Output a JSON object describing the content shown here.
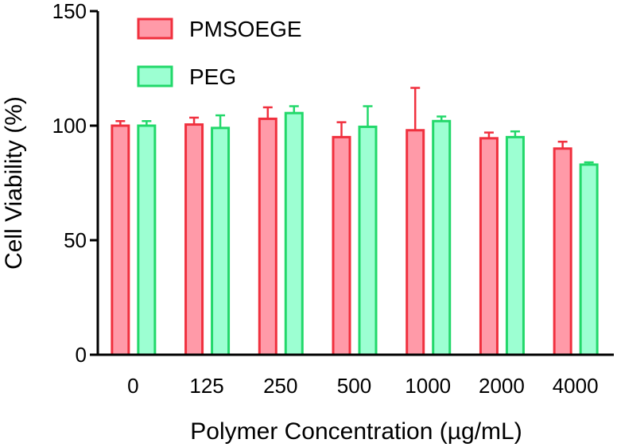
{
  "chart_data": {
    "type": "bar",
    "title": "",
    "xlabel": "Polymer Concentration (µg/mL)",
    "ylabel": "Cell Viability (%)",
    "ylim": [
      0,
      150
    ],
    "yticks": [
      0,
      50,
      100,
      150
    ],
    "categories": [
      "0",
      "125",
      "250",
      "500",
      "1000",
      "2000",
      "4000"
    ],
    "series": [
      {
        "name": "PMSOEGE",
        "fill": "#ff9aa8",
        "stroke": "#f0303e",
        "values": [
          100,
          100.5,
          103,
          95,
          98,
          94.5,
          90
        ],
        "errors": [
          2,
          3,
          5,
          6.5,
          18.5,
          2.5,
          3
        ]
      },
      {
        "name": "PEG",
        "fill": "#9cffd2",
        "stroke": "#22d86a",
        "values": [
          100,
          99,
          105.5,
          99.5,
          102,
          95,
          83
        ],
        "errors": [
          2,
          5.5,
          3,
          9,
          2,
          2.5,
          1
        ]
      }
    ],
    "legend": "top-left",
    "grid": false
  }
}
